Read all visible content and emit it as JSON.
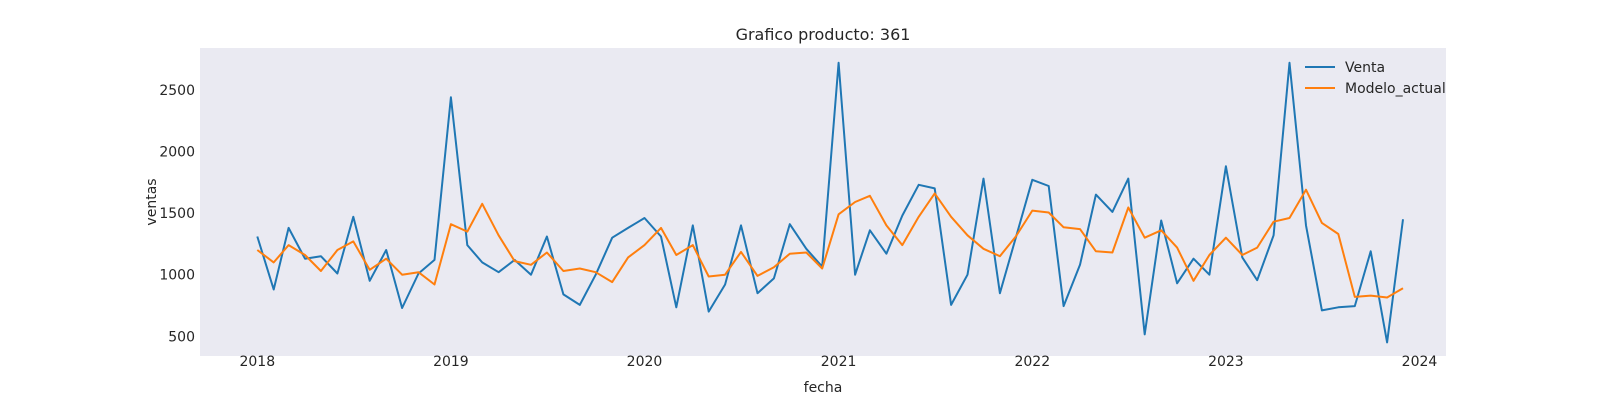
{
  "chart_data": {
    "type": "line",
    "title": "Grafico producto: 361",
    "xlabel": "fecha",
    "ylabel": "ventas",
    "x_start": "2018-01",
    "x_frequency": "monthly",
    "x_ticks": [
      "2018",
      "2019",
      "2020",
      "2021",
      "2022",
      "2023",
      "2024"
    ],
    "x_range": [
      "2017-09-15",
      "2024-02-20"
    ],
    "y_ticks": [
      500,
      1000,
      1500,
      2000,
      2500
    ],
    "ylim": [
      340,
      2840
    ],
    "grid": false,
    "background": "#eaeaf2",
    "legend_position": "top-right",
    "series": [
      {
        "name": "Venta",
        "color": "#1f77b4",
        "values": [
          1310,
          880,
          1380,
          1130,
          1150,
          1010,
          1470,
          950,
          1200,
          730,
          1010,
          1120,
          2440,
          1240,
          1100,
          1020,
          1120,
          1000,
          1310,
          840,
          755,
          1000,
          1300,
          1380,
          1460,
          1310,
          735,
          1400,
          700,
          920,
          1400,
          850,
          970,
          1410,
          1210,
          1065,
          2720,
          1000,
          1360,
          1170,
          1480,
          1730,
          1700,
          755,
          1000,
          1780,
          850,
          1300,
          1770,
          1720,
          745,
          1080,
          1650,
          1510,
          1780,
          515,
          1440,
          930,
          1130,
          1000,
          1880,
          1140,
          955,
          1320,
          2720,
          1400,
          710,
          735,
          745,
          1190,
          450,
          1450
        ]
      },
      {
        "name": "Modelo_actual",
        "color": "#ff7f0e",
        "values": [
          1200,
          1100,
          1240,
          1160,
          1030,
          1200,
          1270,
          1040,
          1130,
          1000,
          1020,
          920,
          1410,
          1350,
          1575,
          1320,
          1110,
          1080,
          1180,
          1030,
          1050,
          1020,
          940,
          1140,
          1240,
          1380,
          1160,
          1240,
          985,
          1000,
          1185,
          990,
          1060,
          1170,
          1180,
          1050,
          1490,
          1590,
          1640,
          1400,
          1240,
          1470,
          1660,
          1470,
          1320,
          1210,
          1150,
          1310,
          1520,
          1505,
          1385,
          1370,
          1190,
          1180,
          1545,
          1300,
          1360,
          1220,
          950,
          1160,
          1300,
          1160,
          1220,
          1430,
          1460,
          1690,
          1420,
          1330,
          820,
          830,
          815,
          890
        ]
      }
    ]
  }
}
